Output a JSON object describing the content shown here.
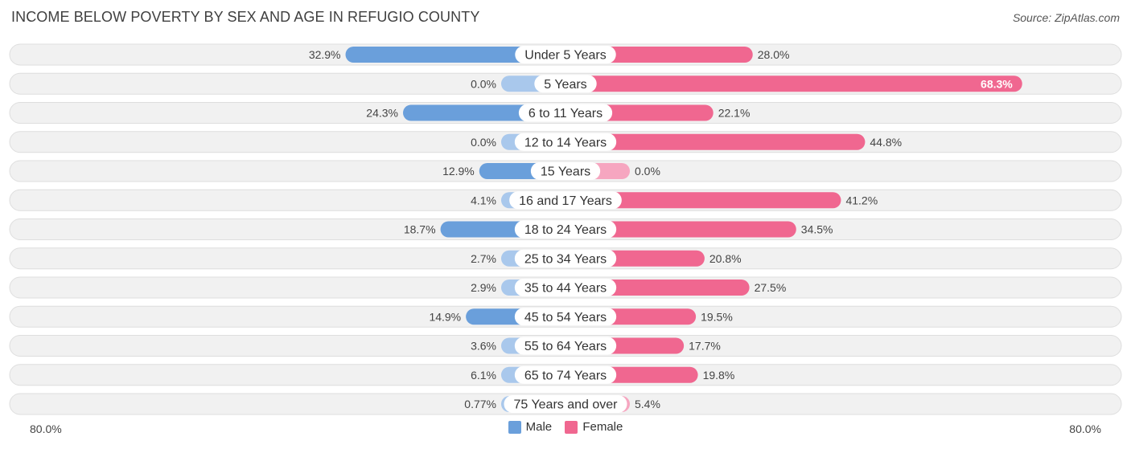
{
  "title": "INCOME BELOW POVERTY BY SEX AND AGE IN REFUGIO COUNTY",
  "source": "Source: ZipAtlas.com",
  "axis": {
    "left_label": "80.0%",
    "right_label": "80.0%"
  },
  "legend": {
    "male_label": "Male",
    "female_label": "Female"
  },
  "colors": {
    "male_strong": "#6a9fdb",
    "male_light": "#a9c8ec",
    "female_strong": "#f06790",
    "female_light": "#f6a6c0",
    "row_bg": "#f1f1f1",
    "row_border": "#dedede"
  },
  "chart_data": {
    "type": "bar",
    "orientation": "horizontal-diverging",
    "title": "INCOME BELOW POVERTY BY SEX AND AGE IN REFUGIO COUNTY",
    "xlim": [
      -80,
      80
    ],
    "categories": [
      "Under 5 Years",
      "5 Years",
      "6 to 11 Years",
      "12 to 14 Years",
      "15 Years",
      "16 and 17 Years",
      "18 to 24 Years",
      "25 to 34 Years",
      "35 to 44 Years",
      "45 to 54 Years",
      "55 to 64 Years",
      "65 to 74 Years",
      "75 Years and over"
    ],
    "series": [
      {
        "name": "Male",
        "values": [
          32.9,
          0.0,
          24.3,
          0.0,
          12.9,
          4.1,
          18.7,
          2.7,
          2.9,
          14.9,
          3.6,
          6.1,
          0.77
        ],
        "labels": [
          "32.9%",
          "0.0%",
          "24.3%",
          "0.0%",
          "12.9%",
          "4.1%",
          "18.7%",
          "2.7%",
          "2.9%",
          "14.9%",
          "3.6%",
          "6.1%",
          "0.77%"
        ]
      },
      {
        "name": "Female",
        "values": [
          28.0,
          68.3,
          22.1,
          44.8,
          0.0,
          41.2,
          34.5,
          20.8,
          27.5,
          19.5,
          17.7,
          19.8,
          5.4
        ],
        "labels": [
          "28.0%",
          "68.3%",
          "22.1%",
          "44.8%",
          "0.0%",
          "41.2%",
          "34.5%",
          "20.8%",
          "27.5%",
          "19.5%",
          "17.7%",
          "19.8%",
          "5.4%"
        ]
      }
    ]
  }
}
